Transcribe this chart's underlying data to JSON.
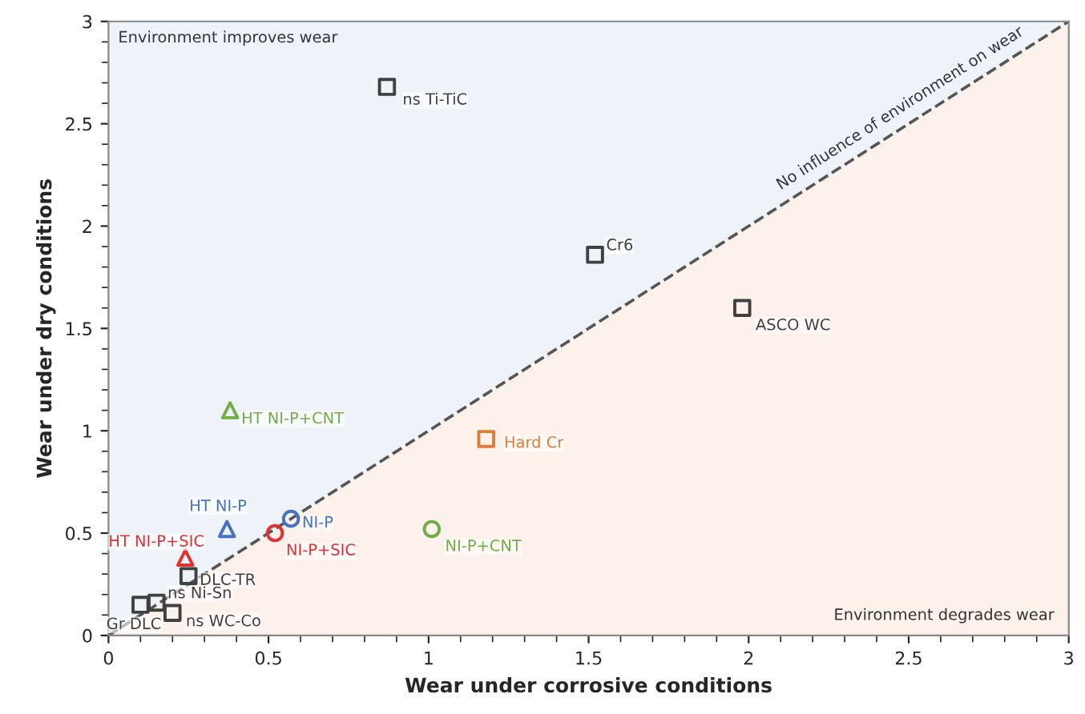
{
  "chart_data": {
    "type": "scatter",
    "xlabel": "Wear under corrosive conditions",
    "ylabel": "Wear under dry conditions",
    "xlim": [
      0,
      3
    ],
    "ylim": [
      0,
      3
    ],
    "xticks": [
      0,
      0.5,
      1,
      1.5,
      2,
      2.5,
      3
    ],
    "yticks": [
      0,
      0.5,
      1,
      1.5,
      2,
      2.5,
      3
    ],
    "grid": false,
    "series": [
      {
        "name": "ns Ti-TiC",
        "color": "#404040",
        "marker": "square",
        "x": [
          0.87
        ],
        "values": [
          2.68
        ]
      },
      {
        "name": "Cr6",
        "color": "#404040",
        "marker": "square",
        "x": [
          1.52
        ],
        "values": [
          1.86
        ]
      },
      {
        "name": "ASCO WC",
        "color": "#404040",
        "marker": "square",
        "x": [
          1.98
        ],
        "values": [
          1.6
        ]
      },
      {
        "name": "Hard Cr",
        "color": "#e07b39",
        "marker": "square",
        "x": [
          1.18
        ],
        "values": [
          0.96
        ]
      },
      {
        "name": "NI-P+CNT",
        "color": "#70ad47",
        "marker": "circle",
        "x": [
          1.01
        ],
        "values": [
          0.52
        ]
      },
      {
        "name": "HT NI-P+CNT",
        "color": "#70ad47",
        "marker": "triangle",
        "x": [
          0.38
        ],
        "values": [
          1.1
        ]
      },
      {
        "name": "HT NI-P",
        "color": "#4472c4",
        "marker": "triangle",
        "x": [
          0.37
        ],
        "values": [
          0.52
        ]
      },
      {
        "name": "NI-P",
        "color": "#4472c4",
        "marker": "circle",
        "x": [
          0.57
        ],
        "values": [
          0.57
        ]
      },
      {
        "name": "NI-P+SIC",
        "color": "#e03030",
        "marker": "circle",
        "x": [
          0.52
        ],
        "values": [
          0.5
        ]
      },
      {
        "name": "HT NI-P+SIC",
        "color": "#e03030",
        "marker": "triangle",
        "x": [
          0.24
        ],
        "values": [
          0.38
        ]
      },
      {
        "name": "DLC-TR",
        "color": "#404040",
        "marker": "square",
        "x": [
          0.25
        ],
        "values": [
          0.29
        ]
      },
      {
        "name": "Gr DLC",
        "color": "#404040",
        "marker": "square",
        "x": [
          0.1
        ],
        "values": [
          0.15
        ]
      },
      {
        "name": "ns Ni-Sn",
        "color": "#404040",
        "marker": "square",
        "x": [
          0.15
        ],
        "values": [
          0.16
        ]
      },
      {
        "name": "ns WC-Co",
        "color": "#404040",
        "marker": "square",
        "x": [
          0.2
        ],
        "values": [
          0.11
        ]
      },
      {
        "type": "line",
        "color": "#555555",
        "line_style": "dashed",
        "marker": "none",
        "x": [
          0,
          3
        ],
        "values": [
          0,
          3
        ]
      }
    ],
    "annotations": [
      "Environment improves wear",
      "Environment degrades wear",
      {
        "text": "No influence of environment on wear",
        "x": 2.5,
        "y": 2.5
      }
    ]
  }
}
